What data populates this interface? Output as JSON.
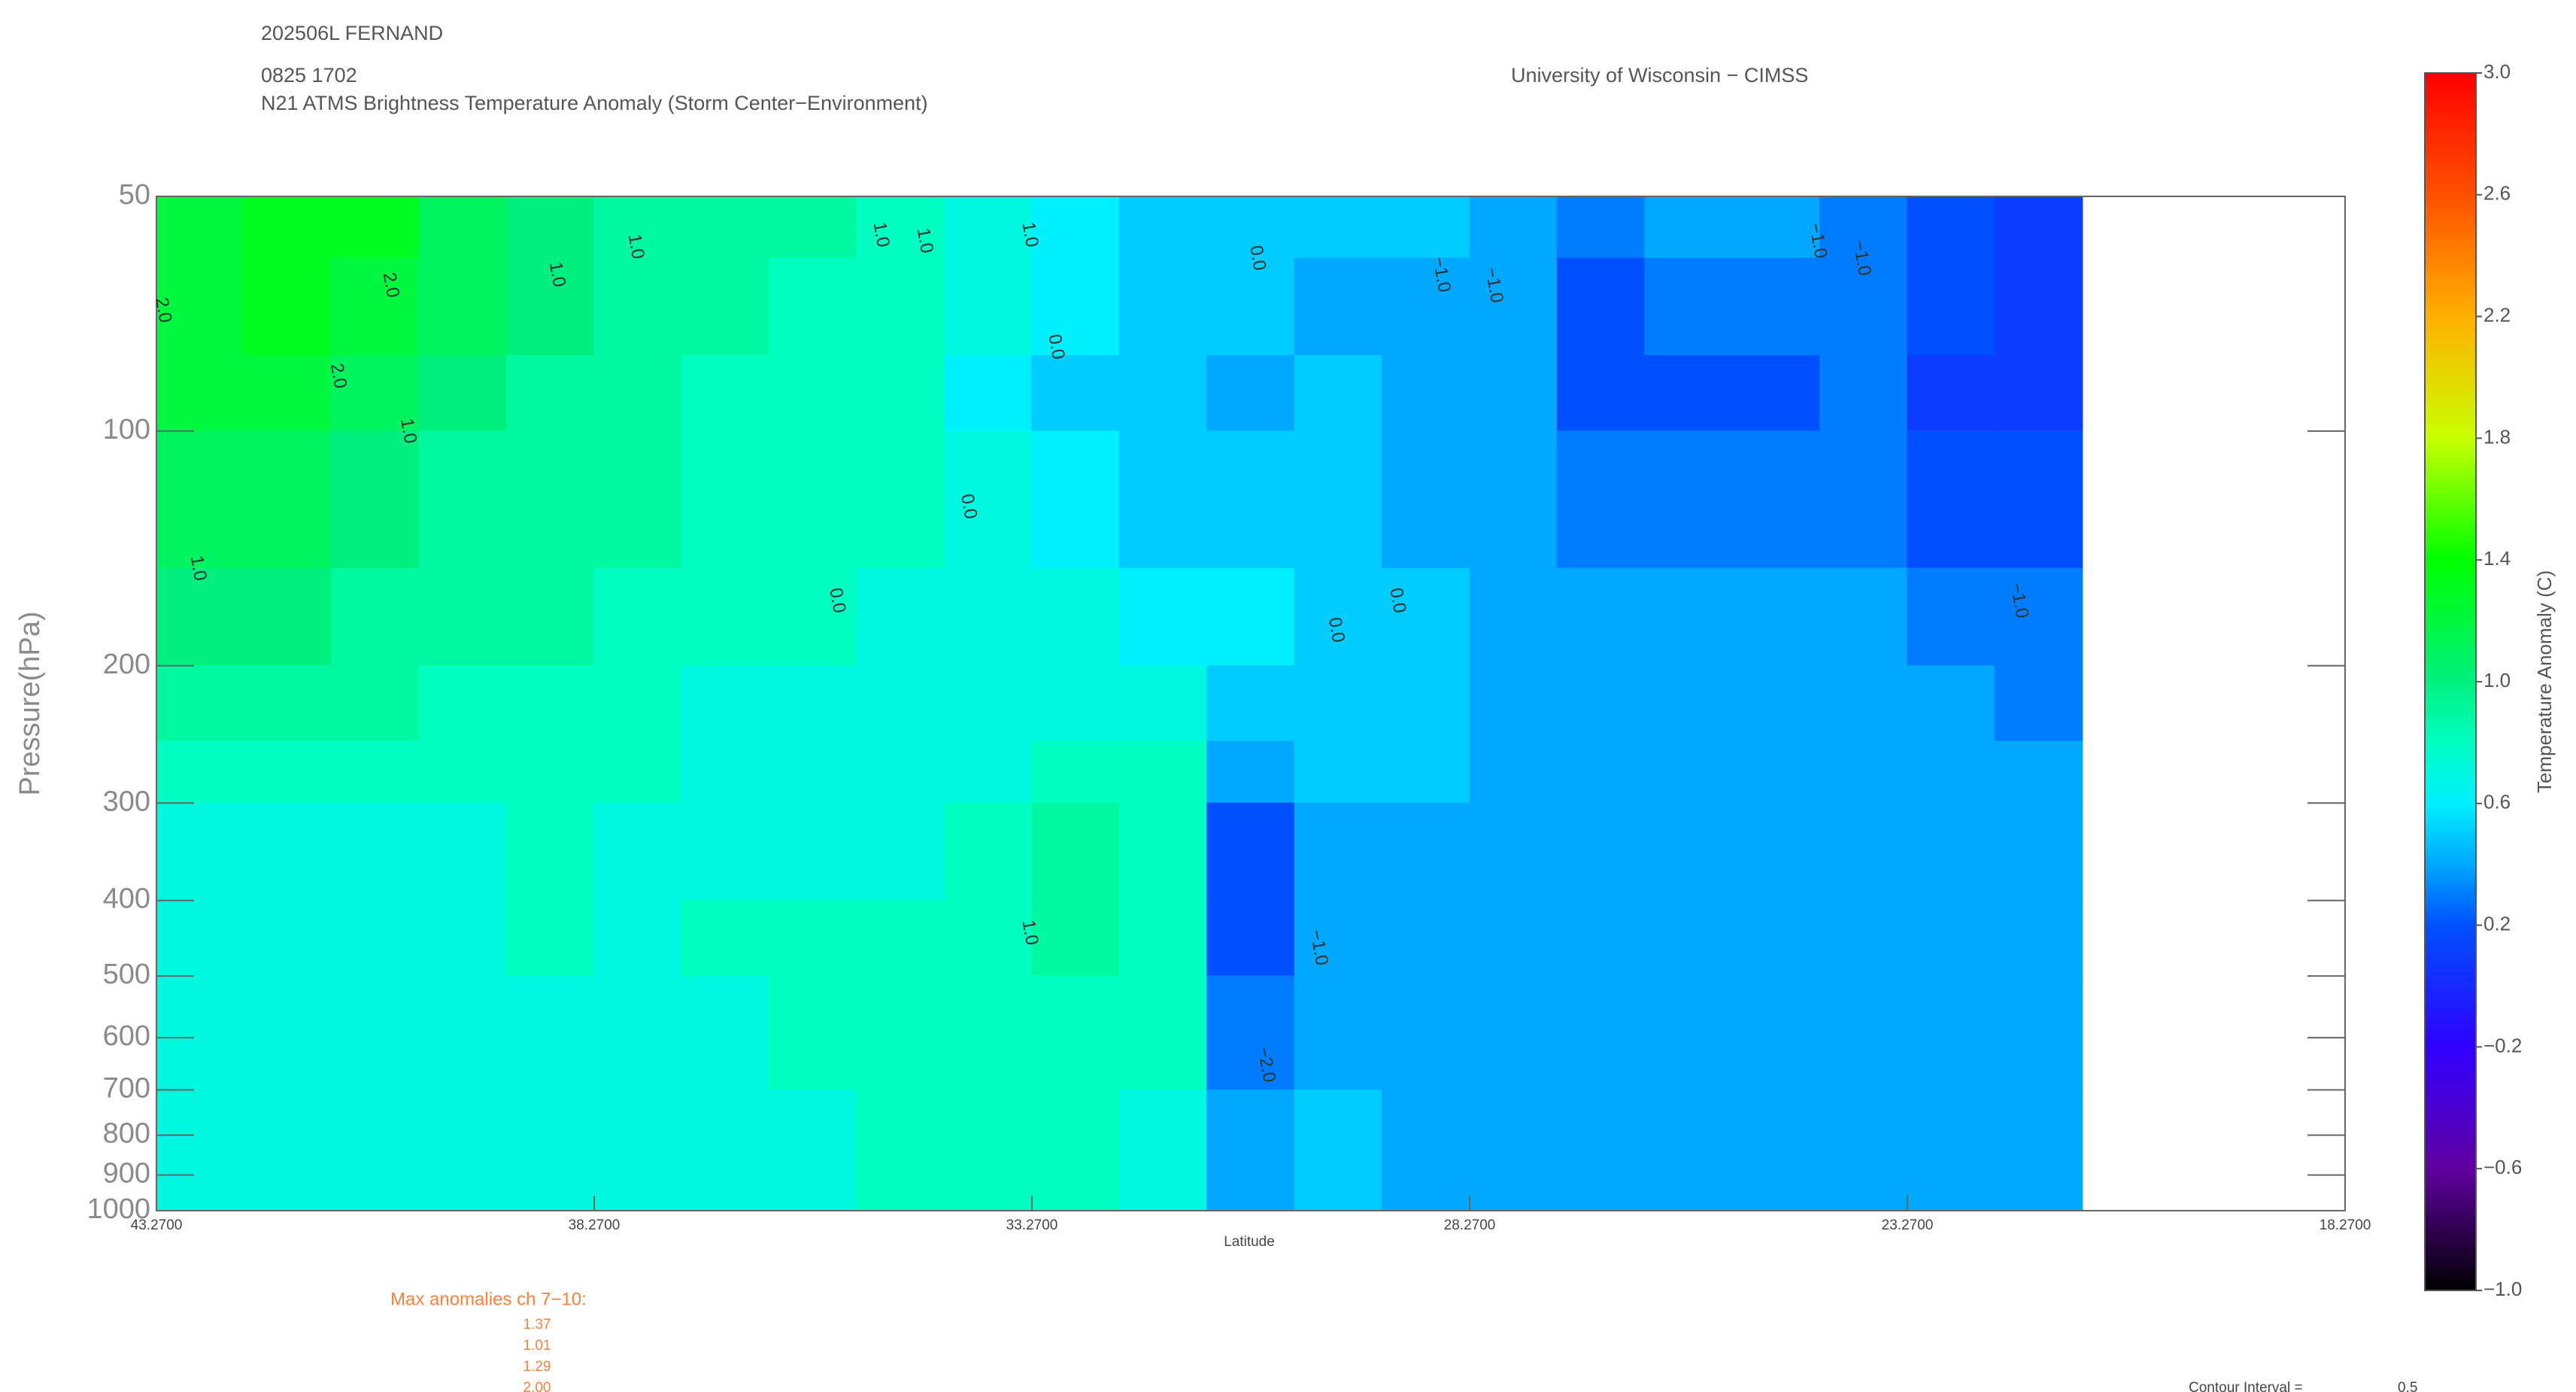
{
  "chart_data": {
    "type": "contour",
    "title": "202506L FERNAND",
    "datetime": "0825 1702",
    "subtitle": "N21 ATMS Brightness Temperature Anomaly (Storm Center−Environment)",
    "source": "University of Wisconsin − CIMSS",
    "x_label": "Latitude",
    "y_label": "Pressure(hPa)",
    "colorbar_label": "Temperature Anomaly (C)",
    "xlim": [
      43.27,
      18.27
    ],
    "xticks": [
      {
        "value": 43.27,
        "label": "43.2700"
      },
      {
        "value": 38.27,
        "label": "38.2700"
      },
      {
        "value": 33.27,
        "label": "33.2700"
      },
      {
        "value": 28.27,
        "label": "28.2700"
      },
      {
        "value": 23.27,
        "label": "23.2700"
      },
      {
        "value": 18.27,
        "label": "18.2700"
      }
    ],
    "ylim": [
      50,
      1000
    ],
    "y_log": true,
    "y_inverted": true,
    "yticks": [
      50,
      100,
      200,
      300,
      400,
      500,
      600,
      700,
      800,
      900,
      1000
    ],
    "clim": [
      -1,
      3
    ],
    "cticks": [
      {
        "value": -1,
        "label": "−1.0"
      },
      {
        "value": -0.6,
        "label": "−0.6"
      },
      {
        "value": -0.2,
        "label": "−0.2"
      },
      0.2,
      0.6,
      {
        "value": 1,
        "label": "1.0"
      },
      1.4,
      1.8,
      2.2,
      2.6,
      {
        "value": 3,
        "label": "3.0"
      }
    ],
    "colorscale": [
      {
        "value": -1,
        "color": "#000000"
      },
      {
        "value": -0.6,
        "color": "#6000a0"
      },
      {
        "value": -0.2,
        "color": "#3000ff"
      },
      {
        "value": 0.2,
        "color": "#0050ff"
      },
      {
        "value": 0.4,
        "color": "#00a8ff"
      },
      {
        "value": 0.6,
        "color": "#00f0ff"
      },
      {
        "value": 0.8,
        "color": "#00ffc0"
      },
      {
        "value": 1.0,
        "color": "#00f080"
      },
      {
        "value": 1.4,
        "color": "#00ff00"
      },
      {
        "value": 1.8,
        "color": "#c8ff00"
      },
      {
        "value": 2.2,
        "color": "#ffb000"
      },
      {
        "value": 2.6,
        "color": "#ff5000"
      },
      {
        "value": 3.0,
        "color": "#ff0000"
      }
    ],
    "x_edges": [
      43.27,
      42.27,
      41.27,
      40.27,
      39.27,
      38.27,
      37.27,
      36.27,
      35.27,
      34.27,
      33.27,
      32.27,
      31.27,
      30.27,
      29.27,
      28.27,
      27.27,
      26.27,
      25.27,
      24.27,
      23.27,
      22.27,
      21.27
    ],
    "y_edges": [
      50,
      60,
      80,
      100,
      150,
      200,
      250,
      300,
      400,
      500,
      700,
      1000
    ],
    "z": [
      [
        1.2,
        1.3,
        1.3,
        1.1,
        1.0,
        0.9,
        0.9,
        0.9,
        0.8,
        0.7,
        0.6,
        0.5,
        0.5,
        0.5,
        0.5,
        0.4,
        0.3,
        0.4,
        0.4,
        0.3,
        0.2,
        0.1
      ],
      [
        1.2,
        1.3,
        1.2,
        1.1,
        1.0,
        0.9,
        0.9,
        0.8,
        0.8,
        0.7,
        0.6,
        0.5,
        0.5,
        0.4,
        0.4,
        0.4,
        0.2,
        0.3,
        0.3,
        0.3,
        0.2,
        0.1
      ],
      [
        1.2,
        1.2,
        1.1,
        1.0,
        0.9,
        0.9,
        0.8,
        0.8,
        0.8,
        0.6,
        0.5,
        0.5,
        0.4,
        0.5,
        0.4,
        0.4,
        0.2,
        0.2,
        0.2,
        0.3,
        0.1,
        0.1
      ],
      [
        1.1,
        1.1,
        1.0,
        0.9,
        0.9,
        0.9,
        0.8,
        0.8,
        0.8,
        0.7,
        0.6,
        0.5,
        0.5,
        0.5,
        0.4,
        0.4,
        0.3,
        0.3,
        0.3,
        0.3,
        0.2,
        0.2
      ],
      [
        1.0,
        1.0,
        0.9,
        0.9,
        0.9,
        0.8,
        0.8,
        0.8,
        0.7,
        0.7,
        0.7,
        0.6,
        0.6,
        0.5,
        0.5,
        0.4,
        0.4,
        0.4,
        0.4,
        0.4,
        0.3,
        0.3
      ],
      [
        0.9,
        0.9,
        0.9,
        0.8,
        0.8,
        0.8,
        0.7,
        0.7,
        0.7,
        0.7,
        0.7,
        0.7,
        0.5,
        0.5,
        0.5,
        0.4,
        0.4,
        0.4,
        0.4,
        0.4,
        0.4,
        0.3
      ],
      [
        0.8,
        0.8,
        0.8,
        0.8,
        0.8,
        0.8,
        0.7,
        0.7,
        0.7,
        0.7,
        0.8,
        0.8,
        0.4,
        0.5,
        0.5,
        0.4,
        0.4,
        0.4,
        0.4,
        0.4,
        0.4,
        0.4
      ],
      [
        0.7,
        0.7,
        0.7,
        0.7,
        0.8,
        0.7,
        0.7,
        0.7,
        0.7,
        0.8,
        0.9,
        0.8,
        0.2,
        0.4,
        0.4,
        0.4,
        0.4,
        0.4,
        0.4,
        0.4,
        0.4,
        0.4
      ],
      [
        0.7,
        0.7,
        0.7,
        0.7,
        0.8,
        0.7,
        0.8,
        0.8,
        0.8,
        0.8,
        0.9,
        0.8,
        0.2,
        0.4,
        0.4,
        0.4,
        0.4,
        0.4,
        0.4,
        0.4,
        0.4,
        0.4
      ],
      [
        0.7,
        0.7,
        0.7,
        0.7,
        0.7,
        0.7,
        0.7,
        0.8,
        0.8,
        0.8,
        0.8,
        0.8,
        0.3,
        0.4,
        0.4,
        0.4,
        0.4,
        0.4,
        0.4,
        0.4,
        0.4,
        0.4
      ],
      [
        0.7,
        0.7,
        0.7,
        0.7,
        0.7,
        0.7,
        0.7,
        0.7,
        0.8,
        0.8,
        0.8,
        0.7,
        0.4,
        0.5,
        0.4,
        0.4,
        0.4,
        0.4,
        0.4,
        0.4,
        0.4,
        0.4
      ]
    ],
    "annotations": [
      {
        "text": "2.0",
        "x": 43.2,
        "y": 70
      },
      {
        "text": "2.0",
        "x": 40.6,
        "y": 65
      },
      {
        "text": "2.0",
        "x": 41.2,
        "y": 85
      },
      {
        "text": "1.0",
        "x": 38.7,
        "y": 63
      },
      {
        "text": "1.0",
        "x": 37.8,
        "y": 58
      },
      {
        "text": "1.0",
        "x": 42.8,
        "y": 150
      },
      {
        "text": "1.0",
        "x": 40.4,
        "y": 100
      },
      {
        "text": "1.0",
        "x": 35.0,
        "y": 56
      },
      {
        "text": "1.0",
        "x": 34.5,
        "y": 57
      },
      {
        "text": "1.0",
        "x": 33.3,
        "y": 56
      },
      {
        "text": "0.0",
        "x": 33.0,
        "y": 78
      },
      {
        "text": "0.0",
        "x": 34.0,
        "y": 125
      },
      {
        "text": "0.0",
        "x": 35.5,
        "y": 165
      },
      {
        "text": "0.0",
        "x": 30.7,
        "y": 60
      },
      {
        "text": "0.0",
        "x": 29.8,
        "y": 180
      },
      {
        "text": "0.0",
        "x": 29.1,
        "y": 165
      },
      {
        "text": "1.0",
        "x": 33.3,
        "y": 440
      },
      {
        "text": "−1.0",
        "x": 30.0,
        "y": 460
      },
      {
        "text": "−2.0",
        "x": 30.6,
        "y": 650
      },
      {
        "text": "−1.0",
        "x": 28.6,
        "y": 63
      },
      {
        "text": "−1.0",
        "x": 28.0,
        "y": 65
      },
      {
        "text": "−1.0",
        "x": 24.3,
        "y": 57
      },
      {
        "text": "−1.0",
        "x": 23.8,
        "y": 60
      },
      {
        "text": "−1.0",
        "x": 22.0,
        "y": 165
      }
    ],
    "max_anomalies_label": "Max anomalies ch 7−10:",
    "max_anomalies": [
      1.37,
      1.01,
      1.29,
      2
    ],
    "max_anomalies_labels": [
      "1.37",
      "1.01",
      "1.29",
      "2.00"
    ],
    "contour_interval_label": "Contour Interval =",
    "contour_interval": 0.5
  }
}
